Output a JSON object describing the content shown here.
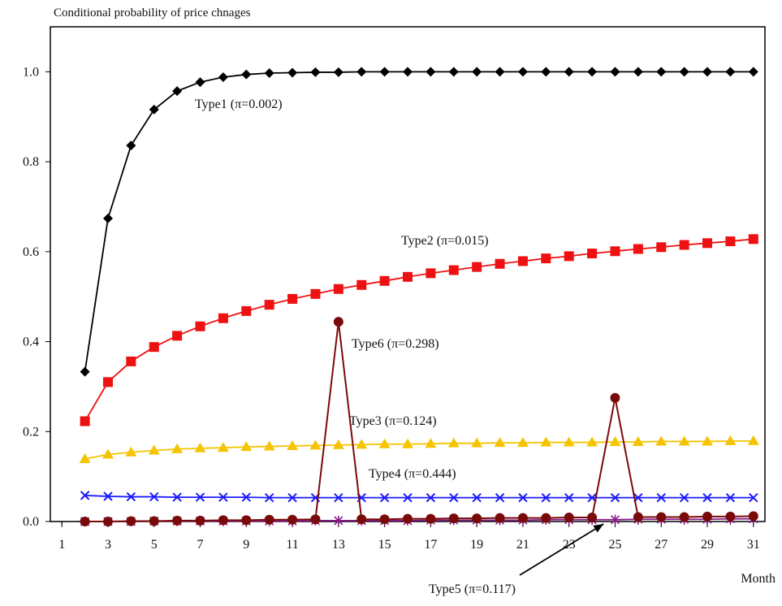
{
  "chart_data": {
    "type": "line",
    "title": "Conditional probability of price chnages",
    "xlabel": "Month",
    "ylabel": "",
    "xlim": [
      0.5,
      31.5
    ],
    "ylim": [
      0,
      1.1
    ],
    "x_ticks": [
      "1",
      "3",
      "5",
      "7",
      "9",
      "11",
      "13",
      "15",
      "17",
      "19",
      "21",
      "23",
      "25",
      "27",
      "29",
      "31"
    ],
    "y_ticks": [
      "0.0",
      "0.2",
      "0.4",
      "0.6",
      "0.8",
      "1.0"
    ],
    "grid": false,
    "x": [
      2,
      3,
      4,
      5,
      6,
      7,
      8,
      9,
      10,
      11,
      12,
      13,
      14,
      15,
      16,
      17,
      18,
      19,
      20,
      21,
      22,
      23,
      24,
      25,
      26,
      27,
      28,
      29,
      30,
      31
    ],
    "series": [
      {
        "name": "Type1",
        "label": "Type1 (π=0.002)",
        "color": "#000000",
        "marker": "diamond",
        "values": [
          0.333,
          0.674,
          0.836,
          0.916,
          0.957,
          0.977,
          0.988,
          0.994,
          0.997,
          0.998,
          0.999,
          0.999,
          1.0,
          1.0,
          1.0,
          1.0,
          1.0,
          1.0,
          1.0,
          1.0,
          1.0,
          1.0,
          1.0,
          1.0,
          1.0,
          1.0,
          1.0,
          1.0,
          1.0,
          1.0
        ]
      },
      {
        "name": "Type2",
        "label": "Type2 (π=0.015)",
        "color": "#ee1111",
        "marker": "square",
        "values": [
          0.223,
          0.31,
          0.356,
          0.388,
          0.413,
          0.434,
          0.452,
          0.468,
          0.482,
          0.495,
          0.506,
          0.517,
          0.526,
          0.535,
          0.544,
          0.552,
          0.559,
          0.566,
          0.573,
          0.579,
          0.585,
          0.59,
          0.596,
          0.601,
          0.606,
          0.61,
          0.615,
          0.619,
          0.623,
          0.628
        ]
      },
      {
        "name": "Type3",
        "label": "Type3 (π=0.124)",
        "color": "#f5c400",
        "marker": "triangle",
        "values": [
          0.139,
          0.149,
          0.154,
          0.158,
          0.161,
          0.163,
          0.164,
          0.166,
          0.167,
          0.168,
          0.169,
          0.17,
          0.171,
          0.172,
          0.172,
          0.173,
          0.174,
          0.174,
          0.175,
          0.175,
          0.176,
          0.176,
          0.176,
          0.177,
          0.177,
          0.178,
          0.178,
          0.178,
          0.179,
          0.179
        ]
      },
      {
        "name": "Type4",
        "label": "Type4 (π=0.444)",
        "color": "#1a1aff",
        "marker": "x",
        "values": [
          0.058,
          0.056,
          0.055,
          0.055,
          0.054,
          0.054,
          0.054,
          0.054,
          0.053,
          0.053,
          0.053,
          0.053,
          0.053,
          0.053,
          0.053,
          0.053,
          0.053,
          0.053,
          0.053,
          0.053,
          0.053,
          0.053,
          0.053,
          0.053,
          0.053,
          0.053,
          0.053,
          0.053,
          0.053,
          0.053
        ]
      },
      {
        "name": "Type5",
        "label": "Type5 (π=0.117)",
        "color": "#8b1a8b",
        "marker": "asterisk",
        "values": [
          0.0,
          0.0,
          0.0,
          0.001,
          0.001,
          0.001,
          0.001,
          0.001,
          0.001,
          0.001,
          0.002,
          0.002,
          0.002,
          0.002,
          0.002,
          0.003,
          0.003,
          0.003,
          0.003,
          0.003,
          0.004,
          0.004,
          0.004,
          0.004,
          0.005,
          0.005,
          0.005,
          0.005,
          0.006,
          0.006
        ]
      },
      {
        "name": "Type6",
        "label": "Type6 (π=0.298)",
        "color": "#7a0a0a",
        "marker": "circle",
        "values": [
          0.0,
          0.0,
          0.001,
          0.001,
          0.002,
          0.002,
          0.003,
          0.003,
          0.004,
          0.004,
          0.005,
          0.444,
          0.005,
          0.005,
          0.006,
          0.006,
          0.007,
          0.007,
          0.008,
          0.008,
          0.008,
          0.009,
          0.009,
          0.275,
          0.01,
          0.01,
          0.01,
          0.011,
          0.011,
          0.012
        ]
      }
    ],
    "annotations": [
      {
        "series": "Type1",
        "text": "Type1 (π=0.002)"
      },
      {
        "series": "Type2",
        "text": "Type2 (π=0.015)"
      },
      {
        "series": "Type6",
        "text": "Type6 (π=0.298)"
      },
      {
        "series": "Type3",
        "text": "Type3 (π=0.124)"
      },
      {
        "series": "Type4",
        "text": "Type4 (π=0.444)"
      },
      {
        "series": "Type5",
        "text": "Type5 (π=0.117)",
        "arrow": true
      }
    ]
  }
}
